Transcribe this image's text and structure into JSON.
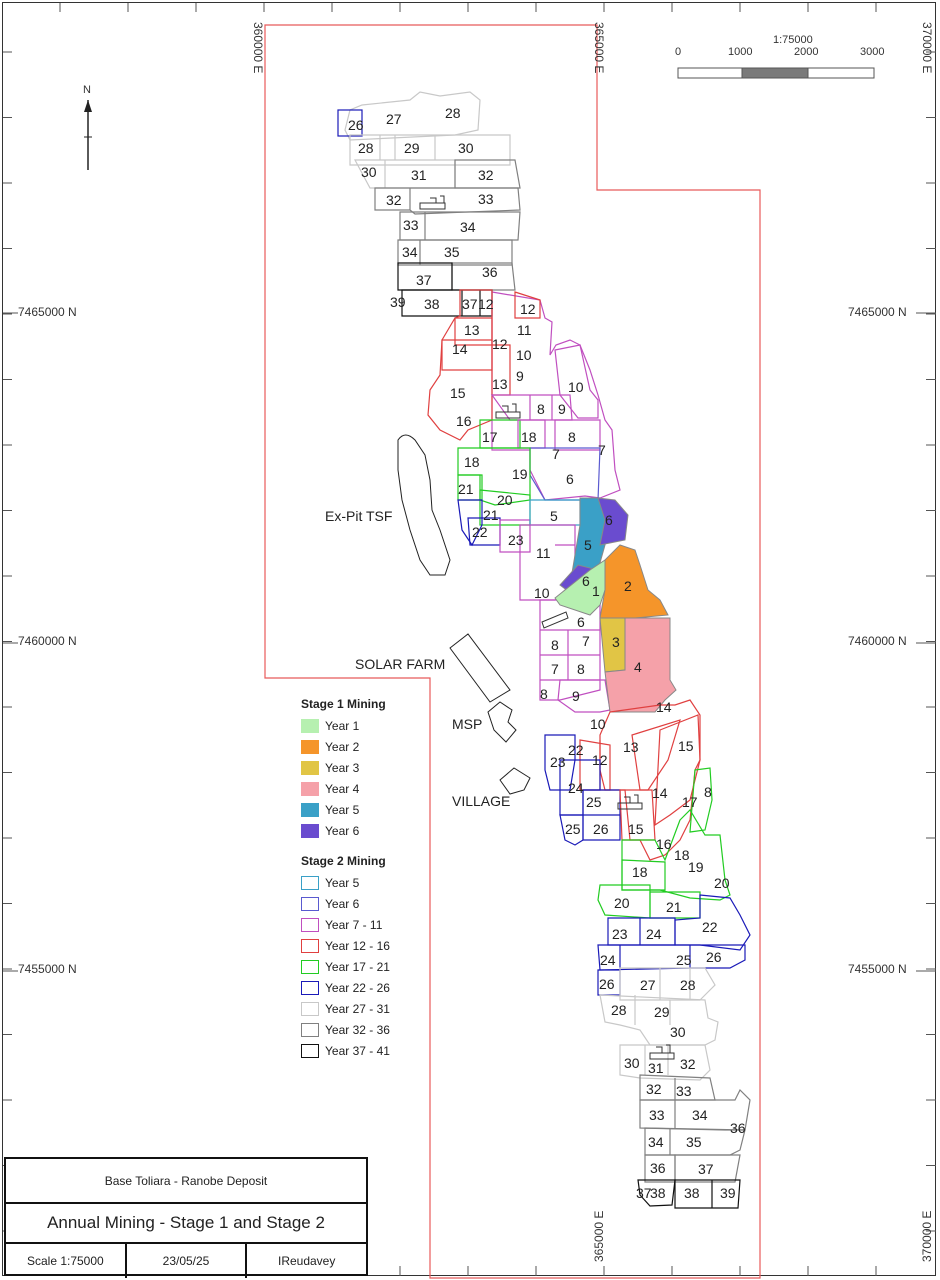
{
  "map": {
    "eastings_top": [
      "360000 E",
      "365000 E",
      "370000 E"
    ],
    "eastings_bottom": [
      "365000 E",
      "370000 E"
    ],
    "northings_left": [
      "7465000 N",
      "7460000 N",
      "7455000 N"
    ],
    "northings_right": [
      "7465000 N",
      "7460000 N",
      "7455000 N"
    ],
    "north_label": "N",
    "scale_bar": {
      "ratio": "1:75000",
      "ticks": [
        "0",
        "1000",
        "2000",
        "3000"
      ]
    },
    "places": [
      "Ex-Pit TSF",
      "SOLAR FARM",
      "MSP",
      "VILLAGE"
    ],
    "block_labels": {
      "north_grey": [
        "26",
        "27",
        "28",
        "28",
        "29",
        "30",
        "30",
        "31",
        "32",
        "32",
        "33",
        "33",
        "34",
        "34",
        "35",
        "36",
        "37",
        "38",
        "37",
        "12",
        "39"
      ],
      "central_purple_red": [
        "12",
        "11",
        "13",
        "12",
        "10",
        "14",
        "9",
        "13",
        "10",
        "15",
        "8",
        "9",
        "16",
        "17",
        "18",
        "8",
        "7",
        "7",
        "6",
        "18",
        "19",
        "21",
        "20",
        "5",
        "21",
        "22",
        "23",
        "11",
        "10",
        "6",
        "8",
        "7",
        "7",
        "8",
        "8",
        "9"
      ],
      "stage1": [
        "6",
        "5",
        "6",
        "1",
        "2",
        "3",
        "4"
      ],
      "south": [
        "14",
        "10",
        "13",
        "15",
        "22",
        "12",
        "23",
        "24",
        "14",
        "17",
        "8",
        "25",
        "26",
        "25",
        "15",
        "16",
        "18",
        "19",
        "18",
        "20",
        "20",
        "21",
        "22",
        "23",
        "24",
        "24",
        "25",
        "26",
        "26",
        "27",
        "28",
        "28",
        "29",
        "30",
        "30",
        "31",
        "32",
        "32",
        "33",
        "33",
        "34",
        "34",
        "35",
        "36",
        "36",
        "37",
        "37",
        "38",
        "38",
        "39"
      ]
    },
    "colors": {
      "boundary": "#e85a5a",
      "year1": "#b6f0b0",
      "year2": "#f5952a",
      "year3": "#e1c545",
      "year4": "#f5a1a9",
      "year5": "#3aa0c7",
      "year6": "#6a4ccf"
    }
  },
  "legend": {
    "stage1_title": "Stage 1 Mining",
    "stage1": [
      {
        "label": "Year 1",
        "fill": "#b6f0b0"
      },
      {
        "label": "Year 2",
        "fill": "#f5952a"
      },
      {
        "label": "Year 3",
        "fill": "#e1c545"
      },
      {
        "label": "Year 4",
        "fill": "#f5a1a9"
      },
      {
        "label": "Year 5",
        "fill": "#3aa0c7"
      },
      {
        "label": "Year 6",
        "fill": "#6a4ccf"
      }
    ],
    "stage2_title": "Stage 2 Mining",
    "stage2": [
      {
        "label": "Year 5",
        "stroke": "#3aa0c7"
      },
      {
        "label": "Year 6",
        "stroke": "#5a5ad0"
      },
      {
        "label": "Year 7 - 11",
        "stroke": "#c04fc0"
      },
      {
        "label": "Year 12 - 16",
        "stroke": "#e04040"
      },
      {
        "label": "Year 17 - 21",
        "stroke": "#22cc22"
      },
      {
        "label": "Year 22 - 26",
        "stroke": "#1a1ab8"
      },
      {
        "label": "Year 27 - 31",
        "stroke": "#c8c8c8"
      },
      {
        "label": "Year 32 - 36",
        "stroke": "#808080"
      },
      {
        "label": "Year 37 - 41",
        "stroke": "#111111"
      }
    ]
  },
  "title_block": {
    "project": "Base Toliara - Ranobe Deposit",
    "title": "Annual Mining - Stage 1 and Stage 2",
    "scale": "Scale 1:75000",
    "date": "23/05/25",
    "author": "IReudavey"
  }
}
